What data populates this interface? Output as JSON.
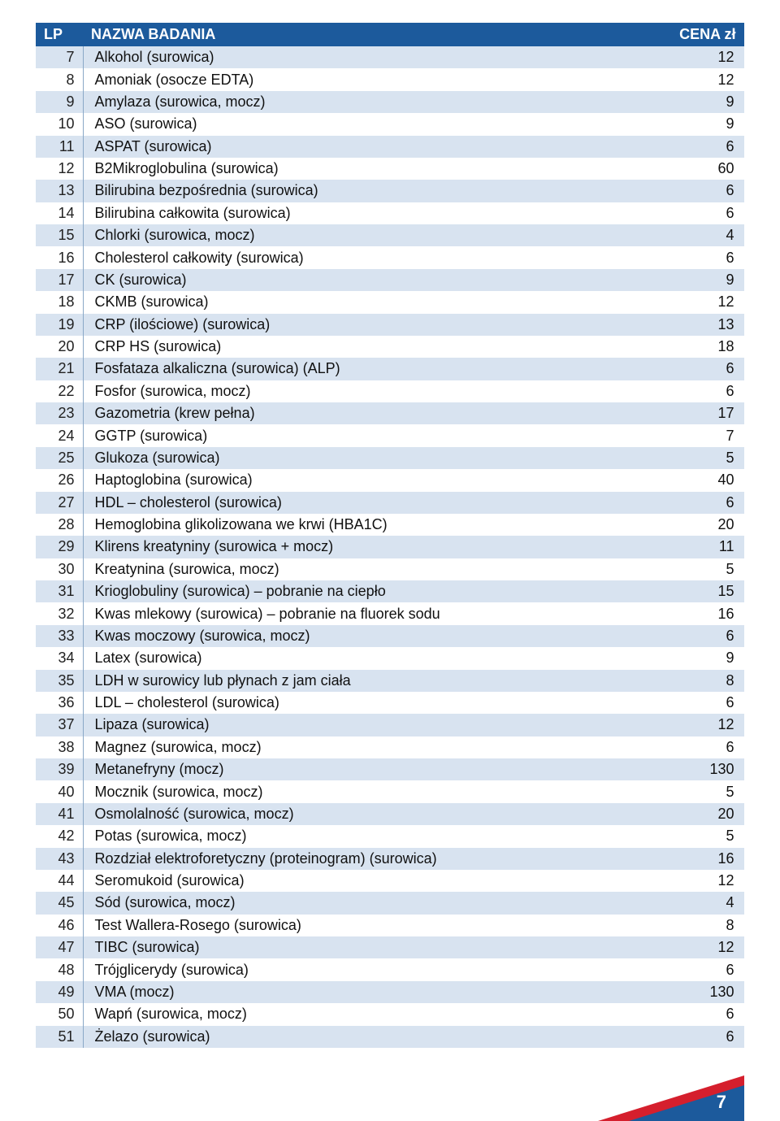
{
  "table": {
    "header_bg": "#1c5a9c",
    "row_alt_bg": "#d8e3f0",
    "row_bg": "#ffffff",
    "border_color": "#8aa8c7",
    "columns": {
      "lp": "LP",
      "name": "NAZWA BADANIA",
      "price": "CENA zł"
    },
    "rows": [
      {
        "lp": "7",
        "name": "Alkohol (surowica)",
        "price": "12"
      },
      {
        "lp": "8",
        "name": "Amoniak (osocze EDTA)",
        "price": "12"
      },
      {
        "lp": "9",
        "name": "Amylaza (surowica, mocz)",
        "price": "9"
      },
      {
        "lp": "10",
        "name": "ASO (surowica)",
        "price": "9"
      },
      {
        "lp": "11",
        "name": "ASPAT (surowica)",
        "price": "6"
      },
      {
        "lp": "12",
        "name": "B2Mikroglobulina (surowica)",
        "price": "60"
      },
      {
        "lp": "13",
        "name": "Bilirubina bezpośrednia (surowica)",
        "price": "6"
      },
      {
        "lp": "14",
        "name": "Bilirubina całkowita (surowica)",
        "price": "6"
      },
      {
        "lp": "15",
        "name": "Chlorki (surowica, mocz)",
        "price": "4"
      },
      {
        "lp": "16",
        "name": "Cholesterol całkowity (surowica)",
        "price": "6"
      },
      {
        "lp": "17",
        "name": "CK (surowica)",
        "price": "9"
      },
      {
        "lp": "18",
        "name": "CKMB (surowica)",
        "price": "12"
      },
      {
        "lp": "19",
        "name": "CRP (ilościowe) (surowica)",
        "price": "13"
      },
      {
        "lp": "20",
        "name": "CRP HS (surowica)",
        "price": "18"
      },
      {
        "lp": "21",
        "name": "Fosfataza alkaliczna (surowica) (ALP)",
        "price": "6"
      },
      {
        "lp": "22",
        "name": "Fosfor (surowica, mocz)",
        "price": "6"
      },
      {
        "lp": "23",
        "name": "Gazometria (krew pełna)",
        "price": "17"
      },
      {
        "lp": "24",
        "name": "GGTP (surowica)",
        "price": "7"
      },
      {
        "lp": "25",
        "name": "Glukoza (surowica)",
        "price": "5"
      },
      {
        "lp": "26",
        "name": "Haptoglobina (surowica)",
        "price": "40"
      },
      {
        "lp": "27",
        "name": "HDL – cholesterol (surowica)",
        "price": "6"
      },
      {
        "lp": "28",
        "name": "Hemoglobina glikolizowana we krwi (HBA1C)",
        "price": "20"
      },
      {
        "lp": "29",
        "name": "Klirens kreatyniny (surowica + mocz)",
        "price": "11"
      },
      {
        "lp": "30",
        "name": "Kreatynina (surowica, mocz)",
        "price": "5"
      },
      {
        "lp": "31",
        "name": "Krioglobuliny (surowica) – pobranie na ciepło",
        "price": "15"
      },
      {
        "lp": "32",
        "name": "Kwas mlekowy (surowica) – pobranie na fluorek sodu",
        "price": "16"
      },
      {
        "lp": "33",
        "name": "Kwas moczowy (surowica, mocz)",
        "price": "6"
      },
      {
        "lp": "34",
        "name": "Latex (surowica)",
        "price": "9"
      },
      {
        "lp": "35",
        "name": "LDH w surowicy lub płynach z jam ciała",
        "price": "8"
      },
      {
        "lp": "36",
        "name": "LDL – cholesterol (surowica)",
        "price": "6"
      },
      {
        "lp": "37",
        "name": "Lipaza (surowica)",
        "price": "12"
      },
      {
        "lp": "38",
        "name": "Magnez (surowica, mocz)",
        "price": "6"
      },
      {
        "lp": "39",
        "name": "Metanefryny (mocz)",
        "price": "130"
      },
      {
        "lp": "40",
        "name": "Mocznik (surowica, mocz)",
        "price": "5"
      },
      {
        "lp": "41",
        "name": "Osmolalność (surowica, mocz)",
        "price": "20"
      },
      {
        "lp": "42",
        "name": "Potas (surowica, mocz)",
        "price": "5"
      },
      {
        "lp": "43",
        "name": "Rozdział elektroforetyczny (proteinogram)  (surowica)",
        "price": "16"
      },
      {
        "lp": "44",
        "name": "Seromukoid  (surowica)",
        "price": "12"
      },
      {
        "lp": "45",
        "name": "Sód (surowica, mocz)",
        "price": "4"
      },
      {
        "lp": "46",
        "name": "Test Wallera-Rosego (surowica)",
        "price": "8"
      },
      {
        "lp": "47",
        "name": "TIBC (surowica)",
        "price": "12"
      },
      {
        "lp": "48",
        "name": "Trójglicerydy (surowica)",
        "price": "6"
      },
      {
        "lp": "49",
        "name": "VMA (mocz)",
        "price": "130"
      },
      {
        "lp": "50",
        "name": "Wapń (surowica, mocz)",
        "price": "6"
      },
      {
        "lp": "51",
        "name": "Żelazo (surowica)",
        "price": "6"
      }
    ]
  },
  "footer": {
    "page_number": "7",
    "stripe_red": "#d51f2d",
    "stripe_blue": "#1c5a9c"
  }
}
